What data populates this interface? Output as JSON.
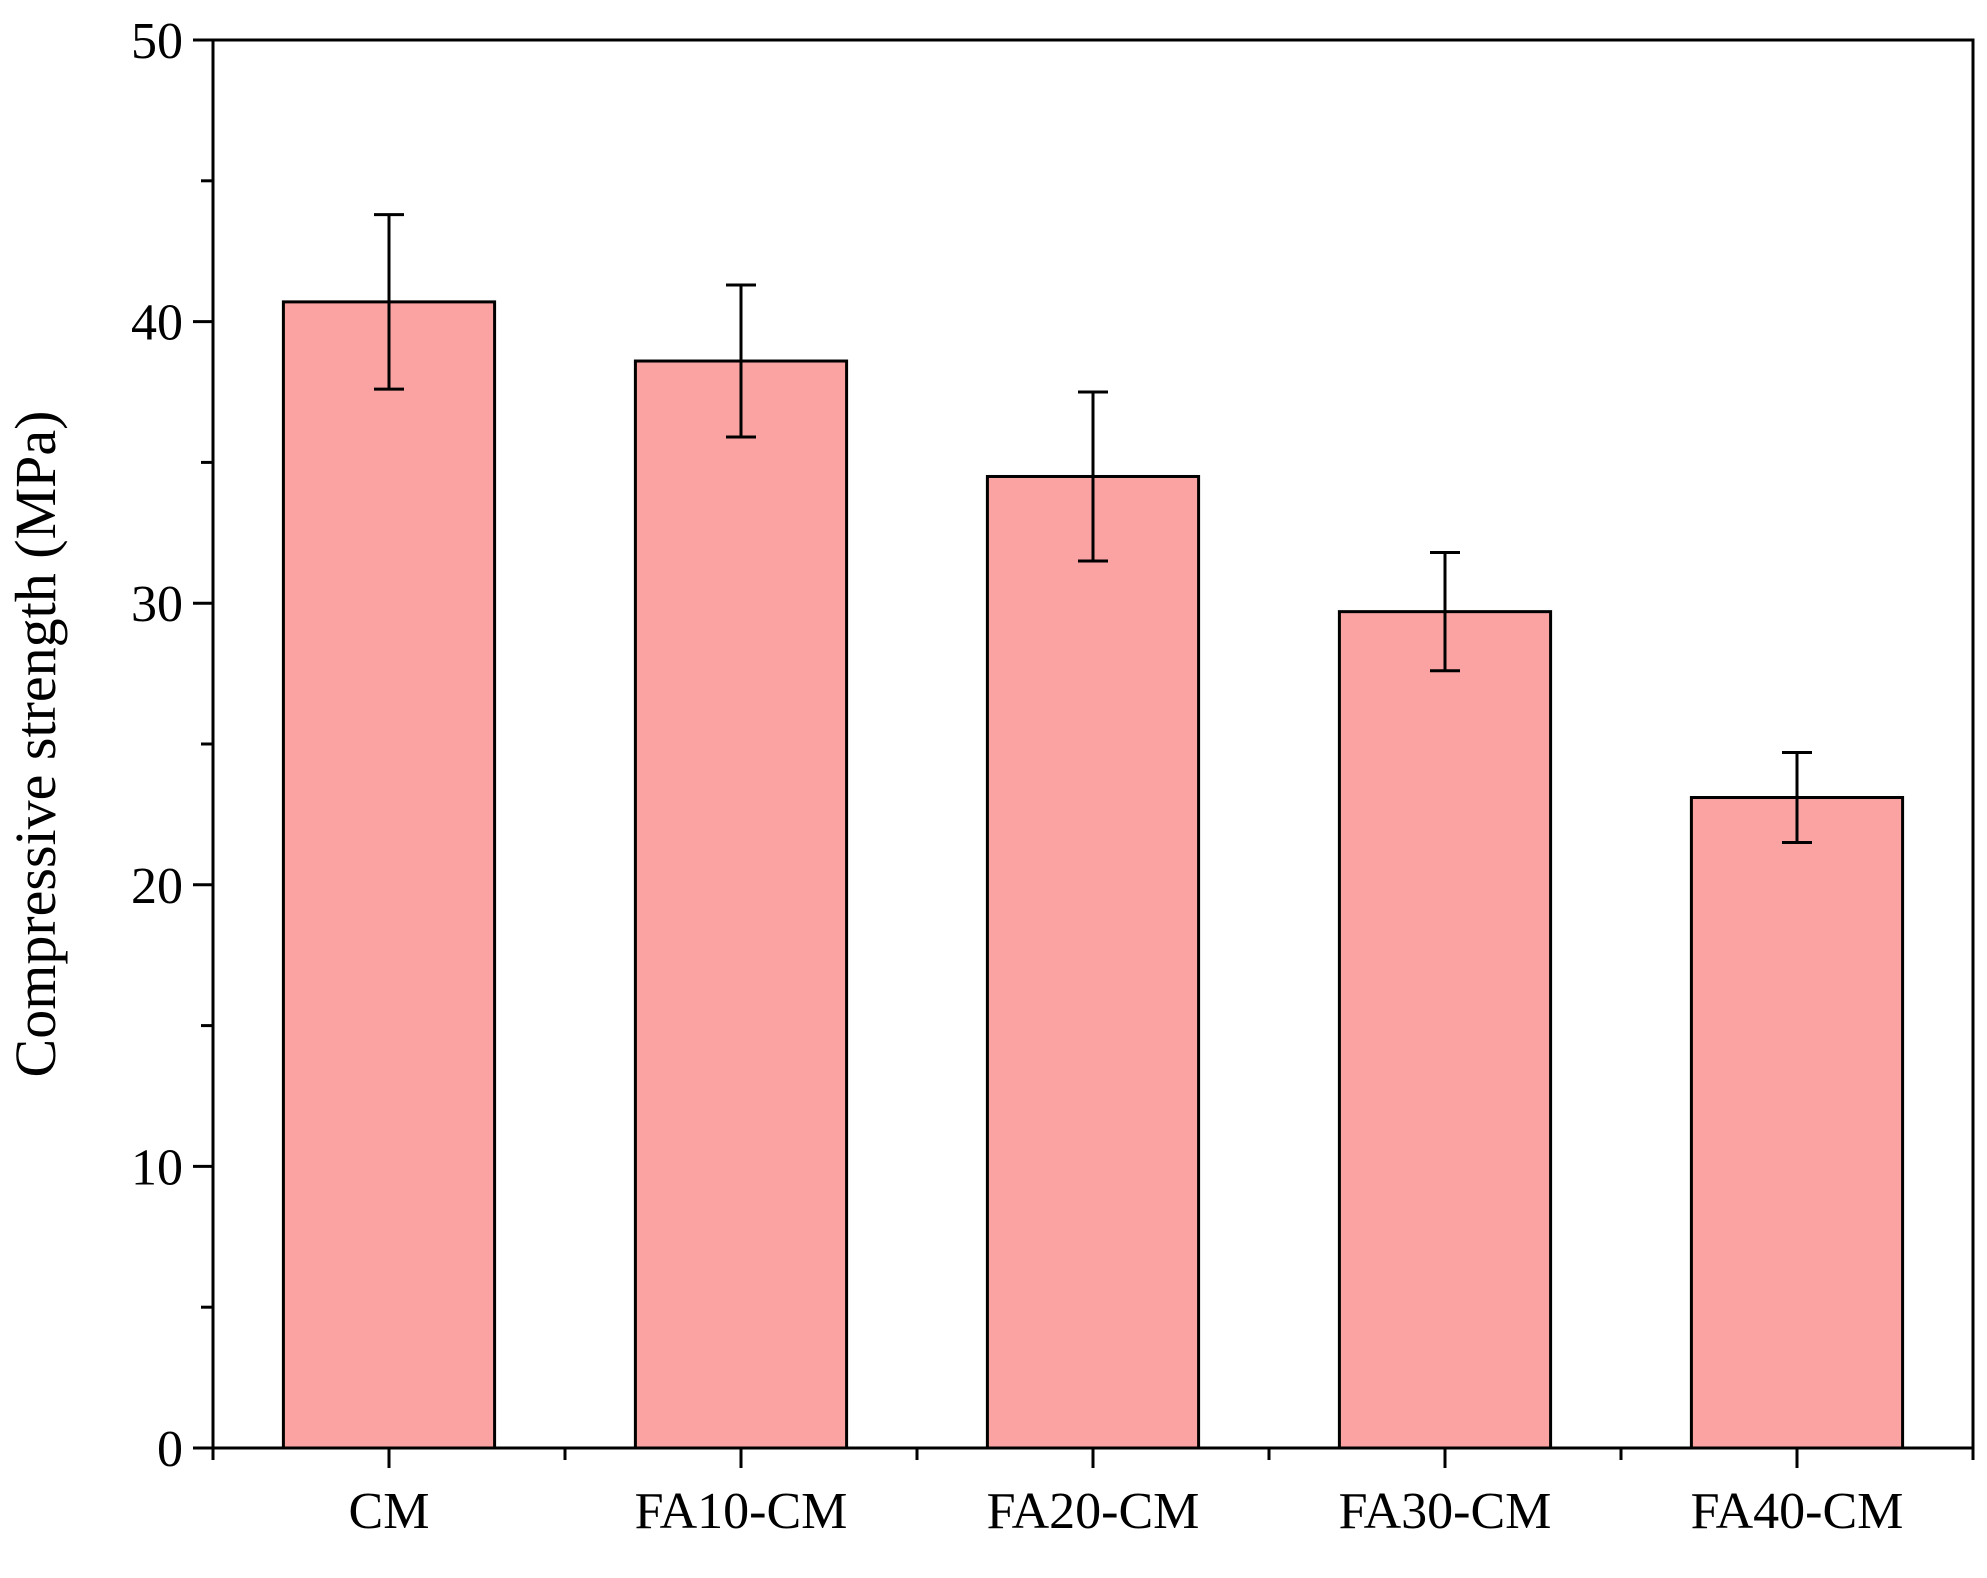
{
  "chart_data": {
    "type": "bar",
    "title": "",
    "xlabel": "",
    "ylabel": "Compressive strength (MPa)",
    "ylim": [
      0,
      50
    ],
    "yticks": [
      0,
      10,
      20,
      30,
      40,
      50
    ],
    "categories": [
      "CM",
      "FA10-CM",
      "FA20-CM",
      "FA30-CM",
      "FA40-CM"
    ],
    "values": [
      40.7,
      38.6,
      34.5,
      29.7,
      23.1
    ],
    "error_upper": [
      43.8,
      41.3,
      37.5,
      31.8,
      24.7
    ],
    "error_lower": [
      37.6,
      35.9,
      31.5,
      27.6,
      21.5
    ],
    "grid": false,
    "legend": "none",
    "bar_color": "#fba3a3",
    "edge_color": "#000000"
  }
}
